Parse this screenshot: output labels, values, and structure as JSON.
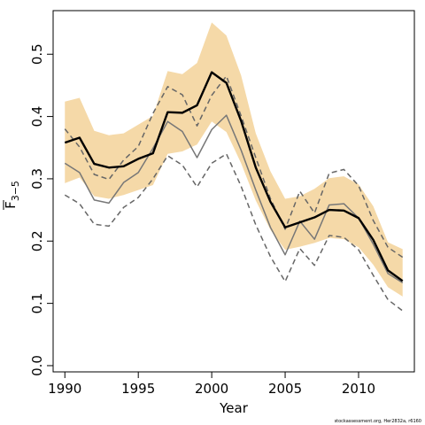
{
  "chart_data": {
    "type": "line",
    "xlabel": "Year",
    "ylabel_base": "F",
    "ylabel_sub": "3−5",
    "credit": "stockassessment.org, Her2832a, r6160",
    "xlim": [
      1989.2,
      2013.8
    ],
    "ylim": [
      -0.01,
      0.57
    ],
    "x_ticks": [
      1990,
      1995,
      2000,
      2005,
      2010
    ],
    "x_tick_labels": [
      "1990",
      "1995",
      "2000",
      "2005",
      "2010"
    ],
    "y_ticks": [
      0.0,
      0.1,
      0.2,
      0.3,
      0.4,
      0.5
    ],
    "y_tick_labels": [
      "0.0",
      "0.1",
      "0.2",
      "0.3",
      "0.4",
      "0.5"
    ],
    "x": [
      1990,
      1991,
      1992,
      1993,
      1994,
      1995,
      1996,
      1997,
      1998,
      1999,
      2000,
      2001,
      2002,
      2003,
      2004,
      2005,
      2006,
      2007,
      2008,
      2009,
      2010,
      2011,
      2012,
      2013
    ],
    "band": {
      "color": "#f5d9a8",
      "lower": [
        0.293,
        0.302,
        0.272,
        0.268,
        0.274,
        0.282,
        0.29,
        0.34,
        0.344,
        0.355,
        0.392,
        0.375,
        0.325,
        0.265,
        0.218,
        0.186,
        0.191,
        0.197,
        0.205,
        0.203,
        0.19,
        0.162,
        0.126,
        0.111
      ],
      "upper": [
        0.424,
        0.43,
        0.377,
        0.37,
        0.373,
        0.387,
        0.401,
        0.473,
        0.468,
        0.486,
        0.551,
        0.53,
        0.466,
        0.373,
        0.312,
        0.268,
        0.272,
        0.284,
        0.301,
        0.304,
        0.291,
        0.256,
        0.198,
        0.187
      ]
    },
    "series": [
      {
        "role": "estimate",
        "color": "#000000",
        "style": "solid",
        "width": 2.4,
        "values": [
          0.358,
          0.366,
          0.324,
          0.318,
          0.32,
          0.332,
          0.341,
          0.407,
          0.406,
          0.418,
          0.471,
          0.454,
          0.393,
          0.318,
          0.263,
          0.222,
          0.23,
          0.238,
          0.25,
          0.249,
          0.237,
          0.202,
          0.153,
          0.136
        ]
      },
      {
        "role": "retro-solid",
        "color": "#777777",
        "style": "solid",
        "width": 1.5,
        "values": [
          0.325,
          0.31,
          0.266,
          0.261,
          0.294,
          0.31,
          0.349,
          0.392,
          0.376,
          0.334,
          0.379,
          0.402,
          0.346,
          0.282,
          0.222,
          0.178,
          0.232,
          0.203,
          0.258,
          0.26,
          0.237,
          0.195,
          0.148,
          0.133
        ]
      },
      {
        "role": "retro-dashed-upper",
        "color": "#666666",
        "style": "dashed",
        "width": 1.5,
        "values": [
          0.38,
          0.351,
          0.307,
          0.299,
          0.33,
          0.352,
          0.405,
          0.448,
          0.435,
          0.385,
          0.434,
          0.465,
          0.401,
          0.334,
          0.268,
          0.219,
          0.28,
          0.245,
          0.309,
          0.315,
          0.289,
          0.233,
          0.19,
          0.174
        ]
      },
      {
        "role": "retro-dashed-lower",
        "color": "#666666",
        "style": "dashed",
        "width": 1.5,
        "values": [
          0.274,
          0.26,
          0.227,
          0.224,
          0.254,
          0.27,
          0.3,
          0.337,
          0.322,
          0.287,
          0.325,
          0.34,
          0.288,
          0.226,
          0.175,
          0.135,
          0.188,
          0.161,
          0.209,
          0.206,
          0.186,
          0.145,
          0.106,
          0.088
        ]
      }
    ]
  }
}
